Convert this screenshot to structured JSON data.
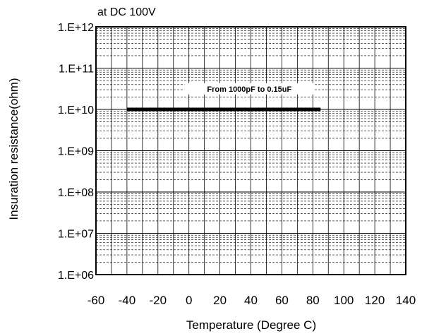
{
  "chart_data": {
    "type": "line",
    "title": "at DC 100V",
    "xlabel": "Temperature (Degree C)",
    "ylabel": "Insuration resistance(ohm)",
    "xlim": [
      -60,
      140
    ],
    "ylim": [
      1000000,
      1000000000000
    ],
    "y_scale": "log",
    "grid": true,
    "x_ticks": [
      -60,
      -40,
      -20,
      0,
      20,
      40,
      60,
      80,
      100,
      120,
      140
    ],
    "x_tick_labels": [
      "-60",
      "-40",
      "-20",
      "0",
      "20",
      "40",
      "60",
      "80",
      "100",
      "120",
      "140"
    ],
    "y_ticks": [
      1000000,
      10000000,
      100000000,
      1000000000,
      10000000000,
      100000000000,
      1000000000000
    ],
    "y_tick_labels": [
      "1.E+06",
      "1.E+07",
      "1.E+08",
      "1.E+09",
      "1.E+10",
      "1.E+11",
      "1.E+12"
    ],
    "series": [
      {
        "x": [
          -40,
          85
        ],
        "y": [
          10000000000,
          10000000000
        ],
        "color": "#000000"
      }
    ],
    "annotations": [
      {
        "text": "From 1000pF to 0.15uF",
        "x": 39,
        "y": 31622776601
      }
    ]
  }
}
